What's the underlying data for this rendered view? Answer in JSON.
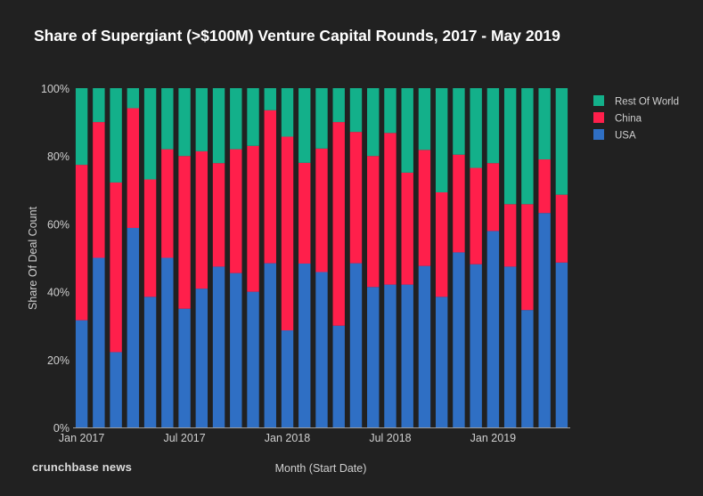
{
  "chart_data": {
    "type": "bar",
    "stacked": true,
    "title": "Share of Supergiant (>$100M) Venture Capital Rounds, 2017 - May 2019",
    "xlabel": "Month (Start Date)",
    "ylabel": "Share Of Deal Count",
    "ylim": [
      0,
      100
    ],
    "yticks": [
      "0%",
      "20%",
      "40%",
      "60%",
      "80%",
      "100%"
    ],
    "x_tick_labels": [
      {
        "index": 0,
        "label": "Jan 2017"
      },
      {
        "index": 6,
        "label": "Jul 2017"
      },
      {
        "index": 12,
        "label": "Jan 2018"
      },
      {
        "index": 18,
        "label": "Jul 2018"
      },
      {
        "index": 24,
        "label": "Jan 2019"
      }
    ],
    "categories": [
      "Jan 2017",
      "Feb 2017",
      "Mar 2017",
      "Apr 2017",
      "May 2017",
      "Jun 2017",
      "Jul 2017",
      "Aug 2017",
      "Sep 2017",
      "Oct 2017",
      "Nov 2017",
      "Dec 2017",
      "Jan 2018",
      "Feb 2018",
      "Mar 2018",
      "Apr 2018",
      "May 2018",
      "Jun 2018",
      "Jul 2018",
      "Aug 2018",
      "Sep 2018",
      "Oct 2018",
      "Nov 2018",
      "Dec 2018",
      "Jan 2019",
      "Feb 2019",
      "Mar 2019",
      "Apr 2019",
      "May 2019"
    ],
    "series": [
      {
        "name": "USA",
        "color": "#2f6fc4",
        "values": [
          31.6,
          50,
          22.2,
          58.8,
          38.5,
          50,
          35,
          40.9,
          47.4,
          45.5,
          40,
          48.4,
          28.6,
          48.3,
          45.8,
          30,
          48.4,
          41.4,
          42.1,
          42.1,
          47.6,
          38.5,
          51.6,
          48.1,
          57.9,
          47.4,
          34.6,
          63.2,
          48.6
        ]
      },
      {
        "name": "China",
        "color": "#ff1f4b",
        "values": [
          45.8,
          40,
          50,
          35.3,
          34.6,
          32,
          45,
          40.5,
          30.5,
          36.5,
          43,
          45.1,
          57.1,
          29.7,
          36.4,
          60,
          38.7,
          38.6,
          44.7,
          33,
          34.2,
          30.8,
          28.8,
          28.4,
          20,
          18.4,
          31.2,
          15.8,
          20
        ]
      },
      {
        "name": "Rest Of World",
        "color": "#13b08a",
        "values": [
          22.6,
          10,
          27.8,
          5.9,
          26.9,
          18,
          20,
          18.6,
          22.1,
          18,
          17,
          6.5,
          14.3,
          22,
          17.8,
          10,
          12.9,
          20,
          13.2,
          24.9,
          18.2,
          30.7,
          19.6,
          23.5,
          22.1,
          34.2,
          34.2,
          21,
          31.4
        ]
      }
    ],
    "legend_order": [
      "Rest Of World",
      "China",
      "USA"
    ],
    "legend_position": "top-right"
  },
  "brand": "crunchbase news"
}
